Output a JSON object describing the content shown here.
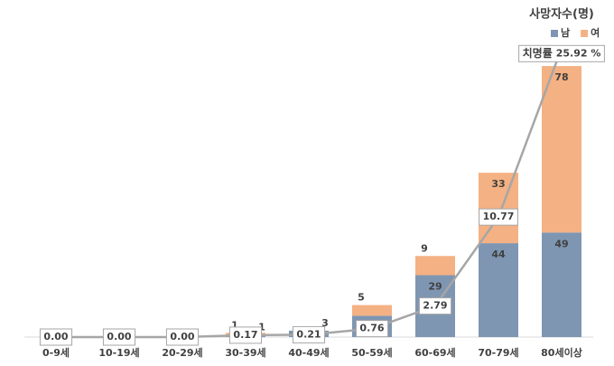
{
  "chart_data": {
    "type": "bar",
    "legend_title": "사망자수(명)",
    "categories": [
      "0-9세",
      "10-19세",
      "20-29세",
      "30-39세",
      "40-49세",
      "50-59세",
      "60-69세",
      "70-79세",
      "80세이상"
    ],
    "series": [
      {
        "name": "남",
        "color": "#7f96b2",
        "values": [
          0,
          0,
          0,
          1,
          3,
          10,
          29,
          44,
          49
        ]
      },
      {
        "name": "여",
        "color": "#f4b183",
        "values": [
          0,
          0,
          0,
          1,
          0,
          5,
          9,
          33,
          78
        ]
      },
      {
        "name": "치명률",
        "type": "line",
        "axis": "y2",
        "color": "#a6a6a6",
        "values": [
          0,
          0,
          0,
          0.17,
          0.21,
          0.76,
          2.79,
          10.77,
          25.92
        ],
        "value_labels": [
          "0.00",
          "0.00",
          "0.00",
          "0.17",
          "0.21",
          "0.76",
          "2.79",
          "10.77",
          "25.92 %"
        ]
      }
    ],
    "ylim": [
      0,
      141
    ],
    "y2lim": [
      0,
      27
    ],
    "stacked": true,
    "legend": "top right"
  }
}
